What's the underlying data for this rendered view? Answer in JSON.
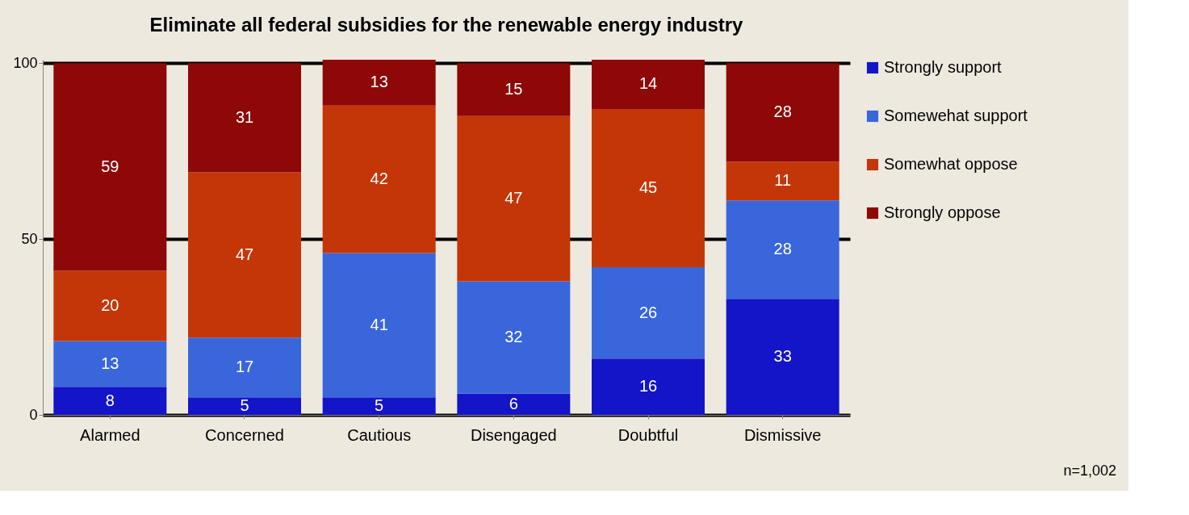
{
  "chart_data": {
    "type": "bar",
    "stacked": true,
    "title": "Eliminate all federal subsidies for the renewable energy industry",
    "categories": [
      "Alarmed",
      "Concerned",
      "Cautious",
      "Disengaged",
      "Doubtful",
      "Dismissive"
    ],
    "series": [
      {
        "name": "Strongly support",
        "color": "#1414c8",
        "values": [
          8,
          5,
          5,
          6,
          16,
          33
        ]
      },
      {
        "name": "Somewehat support",
        "color": "#3a66dc",
        "values": [
          13,
          17,
          41,
          32,
          26,
          28
        ]
      },
      {
        "name": "Somewhat oppose",
        "color": "#c43608",
        "values": [
          20,
          47,
          42,
          47,
          45,
          11
        ]
      },
      {
        "name": "Strongly oppose",
        "color": "#8e0808",
        "values": [
          59,
          31,
          13,
          15,
          14,
          28
        ]
      }
    ],
    "ylim": [
      0,
      101
    ],
    "yticks": [
      0,
      50,
      100
    ],
    "grid": "y",
    "legend": "right",
    "data_labels": true,
    "annotations": [
      "n=1,002"
    ]
  }
}
